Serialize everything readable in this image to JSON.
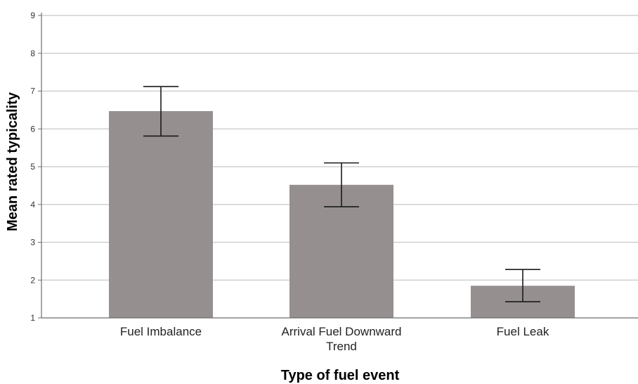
{
  "chart_data": {
    "type": "bar",
    "title": "",
    "xlabel": "Type of fuel event",
    "ylabel": "Mean rated typicality",
    "ylim": [
      1,
      9
    ],
    "yticks": [
      "1",
      "2",
      "3",
      "4",
      "5",
      "6",
      "7",
      "8",
      "9"
    ],
    "grid": true,
    "categories": [
      [
        "Fuel Imbalance"
      ],
      [
        "Arrival Fuel Downward",
        "Trend"
      ],
      [
        "Fuel Leak"
      ]
    ],
    "values": [
      6.47,
      4.52,
      1.85
    ],
    "error_bars": [
      {
        "low": 5.81,
        "high": 7.12
      },
      {
        "low": 3.94,
        "high": 5.1
      },
      {
        "low": 1.43,
        "high": 2.28
      }
    ],
    "colors": {
      "bar": "#958f8f",
      "grid": "#c8c8c8",
      "axis": "#6e6e6e",
      "error_bar": "#1a1a1a"
    }
  }
}
